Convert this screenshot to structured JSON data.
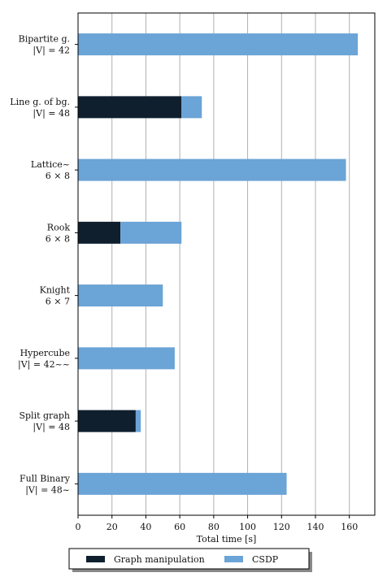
{
  "chart_data": {
    "type": "bar",
    "orientation": "horizontal",
    "stacked": true,
    "categories": [
      {
        "line1": "Bipartite g.",
        "line2": "|V| = 42"
      },
      {
        "line1": "Line g. of bg.",
        "line2": "|V| = 48"
      },
      {
        "line1": "Lattice~",
        "line2": "6 × 8"
      },
      {
        "line1": "Rook",
        "line2": "6 × 8"
      },
      {
        "line1": "Knight",
        "line2": "6 × 7"
      },
      {
        "line1": "Hypercube",
        "line2": "|V| = 42~~"
      },
      {
        "line1": "Split graph",
        "line2": "|V| = 48"
      },
      {
        "line1": "Full Binary",
        "line2": "|V| = 48~"
      }
    ],
    "series": [
      {
        "name": "Graph manipulation",
        "color": "#0f1f2e",
        "values": [
          0,
          61,
          0,
          25,
          0,
          0,
          34,
          0
        ]
      },
      {
        "name": "CSDP",
        "color": "#6ba4d6",
        "values": [
          165,
          12,
          158,
          36,
          50,
          57,
          3,
          123
        ]
      }
    ],
    "xlabel": "Total time [s]",
    "xlim": [
      0,
      175
    ],
    "xticks": [
      0,
      20,
      40,
      60,
      80,
      100,
      120,
      140,
      160
    ],
    "grid": "vertical",
    "legend_position": "bottom"
  }
}
